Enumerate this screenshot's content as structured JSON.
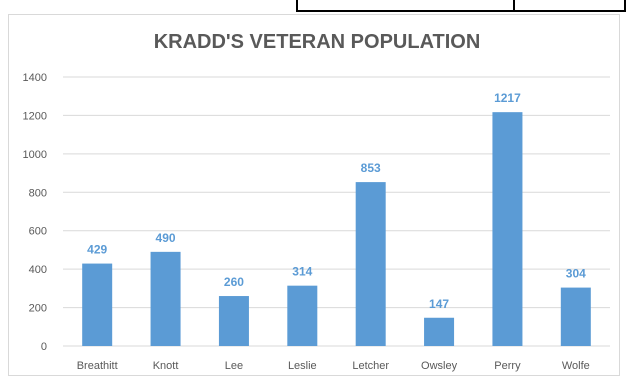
{
  "chart_data": {
    "type": "bar",
    "title": "KRADD'S VETERAN POPULATION",
    "xlabel": "",
    "ylabel": "",
    "categories": [
      "Breathitt",
      "Knott",
      "Lee",
      "Leslie",
      "Letcher",
      "Owsley",
      "Perry",
      "Wolfe"
    ],
    "values": [
      429,
      490,
      260,
      314,
      853,
      147,
      1217,
      304
    ],
    "data_labels": [
      "429",
      "490",
      "260",
      "314",
      "853",
      "147",
      "1217",
      "304"
    ],
    "yticks": [
      "0",
      "200",
      "400",
      "600",
      "800",
      "1000",
      "1200",
      "1400"
    ],
    "ylim": [
      0,
      1400
    ],
    "grid": true,
    "legend": "none",
    "colors": {
      "bar": "#5b9bd5",
      "label": "#5b9bd5",
      "grid": "#d9d9d9",
      "text": "#595959"
    }
  }
}
